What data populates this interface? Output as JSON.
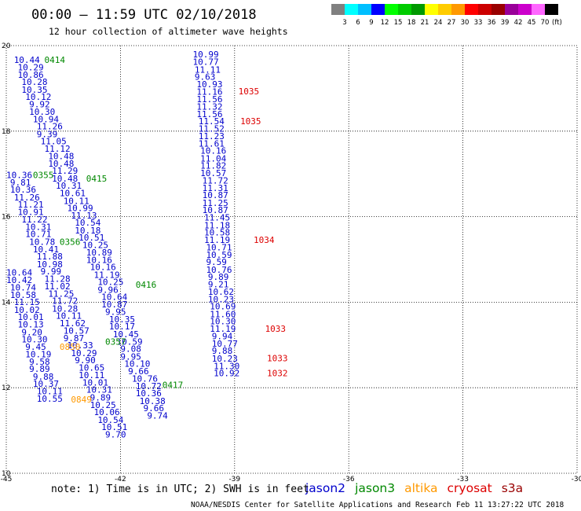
{
  "header": {
    "title": "00:00 – 11:59 UTC 02/10/2018",
    "subtitle": "12 hour collection of altimeter wave heights"
  },
  "colorbar": {
    "colors": [
      "#808080",
      "#00ffff",
      "#00bfff",
      "#0000ff",
      "#00ff00",
      "#00cc00",
      "#009900",
      "#ffff00",
      "#ffcc00",
      "#ff9900",
      "#ff0000",
      "#cc0000",
      "#990000",
      "#990099",
      "#cc00cc",
      "#ff66ff",
      "#000000"
    ],
    "labels": [
      "3",
      "6",
      "9",
      "12",
      "15",
      "18",
      "21",
      "24",
      "27",
      "30",
      "33",
      "36",
      "39",
      "42",
      "45",
      "70"
    ],
    "unit": "(ft)"
  },
  "footer": {
    "note": "note:  1) Time is in UTC;  2) SWH is in feet",
    "credit": "NOAA/NESDIS Center for Satellite Applications and Research",
    "timestamp": "Feb 11 13:27:22 UTC 2018"
  },
  "legend": [
    {
      "name": "jason2",
      "color": "#0000cc"
    },
    {
      "name": "jason3",
      "color": "#008800"
    },
    {
      "name": "altika",
      "color": "#ff9900"
    },
    {
      "name": "cryosat",
      "color": "#dd0000"
    },
    {
      "name": "s3a",
      "color": "#990000"
    }
  ],
  "chart_data": {
    "type": "scatter",
    "title": "00:00 – 11:59 UTC 02/10/2018",
    "subtitle": "12 hour collection of altimeter wave heights",
    "xlim": [
      -45,
      -30
    ],
    "ylim": [
      10,
      20
    ],
    "x_ticks": [
      "-45",
      "-42",
      "-39",
      "-36",
      "-33",
      "-30"
    ],
    "y_ticks": [
      "10",
      "12",
      "14",
      "16",
      "18",
      "20"
    ],
    "grid": true,
    "legend_placement": "bottom-right",
    "series": [
      {
        "name": "jason2",
        "color": "#0000cc",
        "points": [
          {
            "lon": -44.8,
            "lat": 19.6,
            "v": "10.44"
          },
          {
            "lon": -44.7,
            "lat": 19.42,
            "v": "10.29"
          },
          {
            "lon": -44.7,
            "lat": 19.25,
            "v": "10.86"
          },
          {
            "lon": -44.6,
            "lat": 19.08,
            "v": "10.28"
          },
          {
            "lon": -44.6,
            "lat": 18.9,
            "v": "10.35"
          },
          {
            "lon": -44.5,
            "lat": 18.73,
            "v": "10.12"
          },
          {
            "lon": -44.4,
            "lat": 18.56,
            "v": "9.92"
          },
          {
            "lon": -44.4,
            "lat": 18.38,
            "v": "10.30"
          },
          {
            "lon": -44.3,
            "lat": 18.21,
            "v": "10.94"
          },
          {
            "lon": -44.2,
            "lat": 18.04,
            "v": "11.26"
          },
          {
            "lon": -44.2,
            "lat": 17.86,
            "v": "9.39"
          },
          {
            "lon": -44.1,
            "lat": 17.69,
            "v": "11.05"
          },
          {
            "lon": -44.0,
            "lat": 17.52,
            "v": "11.12"
          },
          {
            "lon": -43.9,
            "lat": 17.34,
            "v": "10.48"
          },
          {
            "lon": -43.9,
            "lat": 17.17,
            "v": "10.48"
          },
          {
            "lon": -43.8,
            "lat": 17.0,
            "v": "11.29"
          },
          {
            "lon": -43.8,
            "lat": 16.82,
            "v": "10.48"
          },
          {
            "lon": -43.7,
            "lat": 16.65,
            "v": "10.31"
          },
          {
            "lon": -43.6,
            "lat": 16.48,
            "v": "10.61"
          },
          {
            "lon": -43.5,
            "lat": 16.3,
            "v": "10.11"
          },
          {
            "lon": -43.4,
            "lat": 16.13,
            "v": "10.99"
          },
          {
            "lon": -43.3,
            "lat": 15.96,
            "v": "11.13"
          },
          {
            "lon": -43.2,
            "lat": 15.79,
            "v": "10.54"
          },
          {
            "lon": -43.2,
            "lat": 15.61,
            "v": "10.18"
          },
          {
            "lon": -43.1,
            "lat": 15.44,
            "v": "10.51"
          },
          {
            "lon": -43.0,
            "lat": 15.27,
            "v": "10.25"
          },
          {
            "lon": -42.9,
            "lat": 15.09,
            "v": "10.89"
          },
          {
            "lon": -42.9,
            "lat": 14.92,
            "v": "10.16"
          },
          {
            "lon": -42.8,
            "lat": 14.75,
            "v": "10.16"
          },
          {
            "lon": -42.7,
            "lat": 14.57,
            "v": "11.19"
          },
          {
            "lon": -42.6,
            "lat": 14.4,
            "v": "10.25"
          },
          {
            "lon": -42.6,
            "lat": 14.22,
            "v": "9.96"
          },
          {
            "lon": -42.5,
            "lat": 14.05,
            "v": "10.64"
          },
          {
            "lon": -42.5,
            "lat": 13.88,
            "v": "10.87"
          },
          {
            "lon": -42.4,
            "lat": 13.7,
            "v": "9.95"
          },
          {
            "lon": -42.3,
            "lat": 13.53,
            "v": "10.35"
          },
          {
            "lon": -42.3,
            "lat": 13.36,
            "v": "10.17"
          },
          {
            "lon": -42.2,
            "lat": 13.18,
            "v": "10.45"
          },
          {
            "lon": -42.1,
            "lat": 13.01,
            "v": "10.59"
          },
          {
            "lon": -42.0,
            "lat": 12.84,
            "v": "9.08"
          },
          {
            "lon": -42.0,
            "lat": 12.66,
            "v": "9.95"
          },
          {
            "lon": -41.9,
            "lat": 12.49,
            "v": "10.10"
          },
          {
            "lon": -41.8,
            "lat": 12.32,
            "v": "9.66"
          },
          {
            "lon": -41.7,
            "lat": 12.14,
            "v": "10.76"
          },
          {
            "lon": -41.6,
            "lat": 11.97,
            "v": "10.72"
          },
          {
            "lon": -41.6,
            "lat": 11.8,
            "v": "10.36"
          },
          {
            "lon": -41.5,
            "lat": 11.62,
            "v": "10.38"
          },
          {
            "lon": -41.4,
            "lat": 11.45,
            "v": "9.66"
          },
          {
            "lon": -41.3,
            "lat": 11.28,
            "v": "9.74"
          },
          {
            "lon": -45.0,
            "lat": 16.9,
            "v": "10.36"
          },
          {
            "lon": -44.9,
            "lat": 16.73,
            "v": "9.81"
          },
          {
            "lon": -44.9,
            "lat": 16.56,
            "v": "10.36"
          },
          {
            "lon": -44.8,
            "lat": 16.38,
            "v": "11.26"
          },
          {
            "lon": -44.7,
            "lat": 16.21,
            "v": "11.21"
          },
          {
            "lon": -44.7,
            "lat": 16.04,
            "v": "10.91"
          },
          {
            "lon": -44.6,
            "lat": 15.86,
            "v": "11.22"
          },
          {
            "lon": -44.5,
            "lat": 15.69,
            "v": "10.31"
          },
          {
            "lon": -44.5,
            "lat": 15.52,
            "v": "10.71"
          },
          {
            "lon": -44.4,
            "lat": 15.34,
            "v": "10.78"
          },
          {
            "lon": -44.3,
            "lat": 15.17,
            "v": "10.41"
          },
          {
            "lon": -44.2,
            "lat": 15.0,
            "v": "11.88"
          },
          {
            "lon": -44.2,
            "lat": 14.82,
            "v": "10.98"
          },
          {
            "lon": -44.1,
            "lat": 14.65,
            "v": "9.99"
          },
          {
            "lon": -44.0,
            "lat": 14.48,
            "v": "11.28"
          },
          {
            "lon": -44.0,
            "lat": 14.3,
            "v": "11.02"
          },
          {
            "lon": -43.9,
            "lat": 14.13,
            "v": "11.25"
          },
          {
            "lon": -43.8,
            "lat": 13.96,
            "v": "11.72"
          },
          {
            "lon": -43.8,
            "lat": 13.78,
            "v": "10.28"
          },
          {
            "lon": -43.7,
            "lat": 13.61,
            "v": "10.11"
          },
          {
            "lon": -43.6,
            "lat": 13.44,
            "v": "11.62"
          },
          {
            "lon": -43.5,
            "lat": 13.26,
            "v": "10.57"
          },
          {
            "lon": -43.5,
            "lat": 13.09,
            "v": "9.87"
          },
          {
            "lon": -43.4,
            "lat": 12.92,
            "v": "10.33"
          },
          {
            "lon": -43.3,
            "lat": 12.74,
            "v": "10.29"
          },
          {
            "lon": -43.2,
            "lat": 12.57,
            "v": "9.90"
          },
          {
            "lon": -43.1,
            "lat": 12.4,
            "v": "10.65"
          },
          {
            "lon": -43.1,
            "lat": 12.22,
            "v": "10.11"
          },
          {
            "lon": -43.0,
            "lat": 12.05,
            "v": "10.01"
          },
          {
            "lon": -42.9,
            "lat": 11.88,
            "v": "10.31"
          },
          {
            "lon": -42.8,
            "lat": 11.7,
            "v": "9.89"
          },
          {
            "lon": -42.8,
            "lat": 11.53,
            "v": "10.25"
          },
          {
            "lon": -42.7,
            "lat": 11.36,
            "v": "10.06"
          },
          {
            "lon": -42.6,
            "lat": 11.18,
            "v": "10.54"
          },
          {
            "lon": -42.5,
            "lat": 11.01,
            "v": "10.51"
          },
          {
            "lon": -42.4,
            "lat": 10.84,
            "v": "9.70"
          },
          {
            "lon": -45.0,
            "lat": 14.62,
            "v": "10.64"
          },
          {
            "lon": -45.0,
            "lat": 14.45,
            "v": "10.42"
          },
          {
            "lon": -44.9,
            "lat": 14.27,
            "v": "10.74"
          },
          {
            "lon": -44.9,
            "lat": 14.1,
            "v": "10.58"
          },
          {
            "lon": -44.8,
            "lat": 13.93,
            "v": "11.15"
          },
          {
            "lon": -44.8,
            "lat": 13.75,
            "v": "10.02"
          },
          {
            "lon": -44.7,
            "lat": 13.58,
            "v": "10.01"
          },
          {
            "lon": -44.7,
            "lat": 13.41,
            "v": "10.13"
          },
          {
            "lon": -44.6,
            "lat": 13.23,
            "v": "9.20"
          },
          {
            "lon": -44.6,
            "lat": 13.06,
            "v": "10.30"
          },
          {
            "lon": -44.5,
            "lat": 12.89,
            "v": "9.45"
          },
          {
            "lon": -44.5,
            "lat": 12.71,
            "v": "10.19"
          },
          {
            "lon": -44.4,
            "lat": 12.54,
            "v": "9.58"
          },
          {
            "lon": -44.4,
            "lat": 12.37,
            "v": "9.89"
          },
          {
            "lon": -44.3,
            "lat": 12.19,
            "v": "9.88"
          },
          {
            "lon": -44.3,
            "lat": 12.02,
            "v": "10.37"
          },
          {
            "lon": -44.2,
            "lat": 11.85,
            "v": "10.11"
          },
          {
            "lon": -44.2,
            "lat": 11.67,
            "v": "10.55"
          },
          {
            "lon": -40.1,
            "lat": 19.72,
            "v": "10.99"
          },
          {
            "lon": -40.1,
            "lat": 19.55,
            "v": "10.77"
          },
          {
            "lon": -40.05,
            "lat": 19.37,
            "v": "11.11"
          },
          {
            "lon": -40.05,
            "lat": 19.2,
            "v": "9.63"
          },
          {
            "lon": -40.0,
            "lat": 19.03,
            "v": "10.93"
          },
          {
            "lon": -40.0,
            "lat": 18.85,
            "v": "11.16"
          },
          {
            "lon": -40.0,
            "lat": 18.68,
            "v": "11.56"
          },
          {
            "lon": -40.0,
            "lat": 18.5,
            "v": "11.32"
          },
          {
            "lon": -40.0,
            "lat": 18.33,
            "v": "11.56"
          },
          {
            "lon": -39.95,
            "lat": 18.16,
            "v": "11.54"
          },
          {
            "lon": -39.95,
            "lat": 17.99,
            "v": "11.52"
          },
          {
            "lon": -39.95,
            "lat": 17.81,
            "v": "11.23"
          },
          {
            "lon": -39.95,
            "lat": 17.64,
            "v": "11.61"
          },
          {
            "lon": -39.9,
            "lat": 17.47,
            "v": "10.16"
          },
          {
            "lon": -39.9,
            "lat": 17.29,
            "v": "11.04"
          },
          {
            "lon": -39.9,
            "lat": 17.12,
            "v": "11.82"
          },
          {
            "lon": -39.9,
            "lat": 16.95,
            "v": "10.57"
          },
          {
            "lon": -39.85,
            "lat": 16.77,
            "v": "11.72"
          },
          {
            "lon": -39.85,
            "lat": 16.6,
            "v": "11.31"
          },
          {
            "lon": -39.85,
            "lat": 16.43,
            "v": "10.87"
          },
          {
            "lon": -39.85,
            "lat": 16.25,
            "v": "11.25"
          },
          {
            "lon": -39.85,
            "lat": 16.08,
            "v": "10.87"
          },
          {
            "lon": -39.8,
            "lat": 15.91,
            "v": "11.45"
          },
          {
            "lon": -39.8,
            "lat": 15.73,
            "v": "11.18"
          },
          {
            "lon": -39.8,
            "lat": 15.56,
            "v": "10.58"
          },
          {
            "lon": -39.8,
            "lat": 15.39,
            "v": "11.19"
          },
          {
            "lon": -39.75,
            "lat": 15.21,
            "v": "10.71"
          },
          {
            "lon": -39.75,
            "lat": 15.04,
            "v": "10.59"
          },
          {
            "lon": -39.75,
            "lat": 14.87,
            "v": "9.59"
          },
          {
            "lon": -39.75,
            "lat": 14.69,
            "v": "10.76"
          },
          {
            "lon": -39.7,
            "lat": 14.52,
            "v": "9.89"
          },
          {
            "lon": -39.7,
            "lat": 14.35,
            "v": "9.21"
          },
          {
            "lon": -39.7,
            "lat": 14.17,
            "v": "10.62"
          },
          {
            "lon": -39.7,
            "lat": 14.0,
            "v": "10.23"
          },
          {
            "lon": -39.65,
            "lat": 13.83,
            "v": "10.69"
          },
          {
            "lon": -39.65,
            "lat": 13.65,
            "v": "11.60"
          },
          {
            "lon": -39.65,
            "lat": 13.48,
            "v": "10.30"
          },
          {
            "lon": -39.65,
            "lat": 13.31,
            "v": "11.19"
          },
          {
            "lon": -39.6,
            "lat": 13.13,
            "v": "9.94"
          },
          {
            "lon": -39.6,
            "lat": 12.96,
            "v": "10.77"
          },
          {
            "lon": -39.6,
            "lat": 12.79,
            "v": "9.88"
          },
          {
            "lon": -39.6,
            "lat": 12.61,
            "v": "10.23"
          },
          {
            "lon": -39.55,
            "lat": 12.44,
            "v": "11.30"
          },
          {
            "lon": -39.55,
            "lat": 12.27,
            "v": "10.92"
          }
        ]
      },
      {
        "name": "jason3",
        "color": "#008800",
        "points": [
          {
            "lon": -44.0,
            "lat": 19.6,
            "v": "0414"
          },
          {
            "lon": -44.3,
            "lat": 16.9,
            "v": "0355"
          },
          {
            "lon": -42.9,
            "lat": 16.82,
            "v": "0415"
          },
          {
            "lon": -43.6,
            "lat": 15.34,
            "v": "0356"
          },
          {
            "lon": -41.6,
            "lat": 14.34,
            "v": "0416"
          },
          {
            "lon": -42.4,
            "lat": 13.01,
            "v": "0357"
          },
          {
            "lon": -40.9,
            "lat": 11.99,
            "v": "0417"
          }
        ]
      },
      {
        "name": "altika",
        "color": "#ff9900",
        "points": [
          {
            "lon": -43.6,
            "lat": 12.89,
            "v": "0850"
          },
          {
            "lon": -43.3,
            "lat": 11.65,
            "v": "0849"
          }
        ]
      },
      {
        "name": "cryosat",
        "color": "#dd0000",
        "points": [
          {
            "lon": -38.9,
            "lat": 18.86,
            "v": "1035"
          },
          {
            "lon": -38.85,
            "lat": 18.16,
            "v": "1035"
          },
          {
            "lon": -38.5,
            "lat": 15.39,
            "v": "1034"
          },
          {
            "lon": -38.2,
            "lat": 13.31,
            "v": "1033"
          },
          {
            "lon": -38.15,
            "lat": 12.62,
            "v": "1033"
          },
          {
            "lon": -38.15,
            "lat": 12.27,
            "v": "1032"
          }
        ]
      }
    ]
  }
}
